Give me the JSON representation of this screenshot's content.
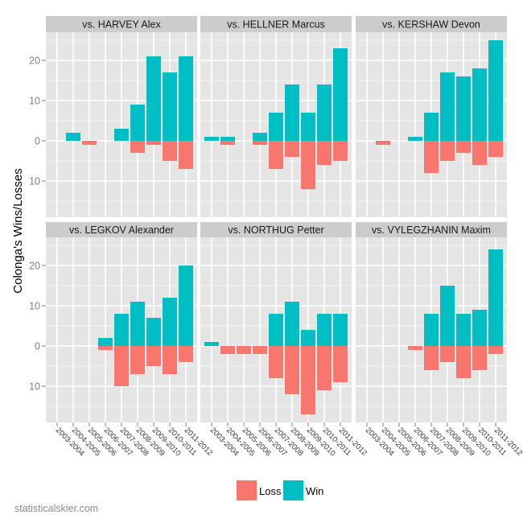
{
  "chart_data": {
    "type": "bar",
    "layout": "facet-grid-2x3",
    "ylabel": "Colonga's Wins/Losses",
    "xlabel": "",
    "categories": [
      "2003-2004",
      "2004-2005",
      "2005-2006",
      "2006-2007",
      "2007-2008",
      "2008-2009",
      "2009-2010",
      "2010-2011",
      "2011-2012"
    ],
    "y_ticks": [
      {
        "value": 20,
        "label": "20"
      },
      {
        "value": 10,
        "label": "10"
      },
      {
        "value": 0,
        "label": "0"
      },
      {
        "value": -10,
        "label": "10"
      }
    ],
    "ylim": [
      -19,
      27
    ],
    "grid": true,
    "legend": {
      "placement": "bottom",
      "entries": [
        {
          "name": "Loss",
          "color": "#F8766D"
        },
        {
          "name": "Win",
          "color": "#00BFC4"
        }
      ]
    },
    "facets": [
      {
        "title": "vs. HARVEY Alex",
        "win": [
          0,
          2,
          0,
          0,
          3,
          9,
          21,
          17,
          21
        ],
        "loss": [
          0,
          0,
          1,
          0,
          0,
          3,
          1,
          5,
          7
        ]
      },
      {
        "title": "vs. HELLNER Marcus",
        "win": [
          1,
          1,
          0,
          2,
          7,
          14,
          7,
          14,
          23
        ],
        "loss": [
          0,
          1,
          0,
          1,
          7,
          4,
          12,
          6,
          5
        ]
      },
      {
        "title": "vs. KERSHAW Devon",
        "win": [
          0,
          0,
          0,
          1,
          7,
          17,
          16,
          18,
          25
        ],
        "loss": [
          0,
          1,
          0,
          0,
          8,
          5,
          3,
          6,
          4
        ]
      },
      {
        "title": "vs. LEGKOV Alexander",
        "win": [
          0,
          0,
          0,
          2,
          8,
          11,
          7,
          12,
          20
        ],
        "loss": [
          0,
          0,
          0,
          1,
          10,
          7,
          5,
          7,
          4
        ]
      },
      {
        "title": "vs. NORTHUG Petter",
        "win": [
          1,
          0,
          0,
          0,
          8,
          11,
          4,
          8,
          8
        ],
        "loss": [
          0,
          2,
          2,
          2,
          8,
          12,
          17,
          11,
          9
        ]
      },
      {
        "title": "vs. VYLEGZHANIN Maxim",
        "win": [
          0,
          0,
          0,
          0,
          8,
          15,
          8,
          9,
          24
        ],
        "loss": [
          0,
          0,
          0,
          1,
          6,
          4,
          8,
          6,
          2
        ]
      }
    ]
  },
  "colors": {
    "panel_bg": "#E5E5E5",
    "strip_bg": "#CCCCCC",
    "grid_major": "#FFFFFF",
    "grid_minor": "#F2F2F2",
    "loss": "#F8766D",
    "win": "#00BFC4"
  },
  "credit": "statisticalskier.com"
}
